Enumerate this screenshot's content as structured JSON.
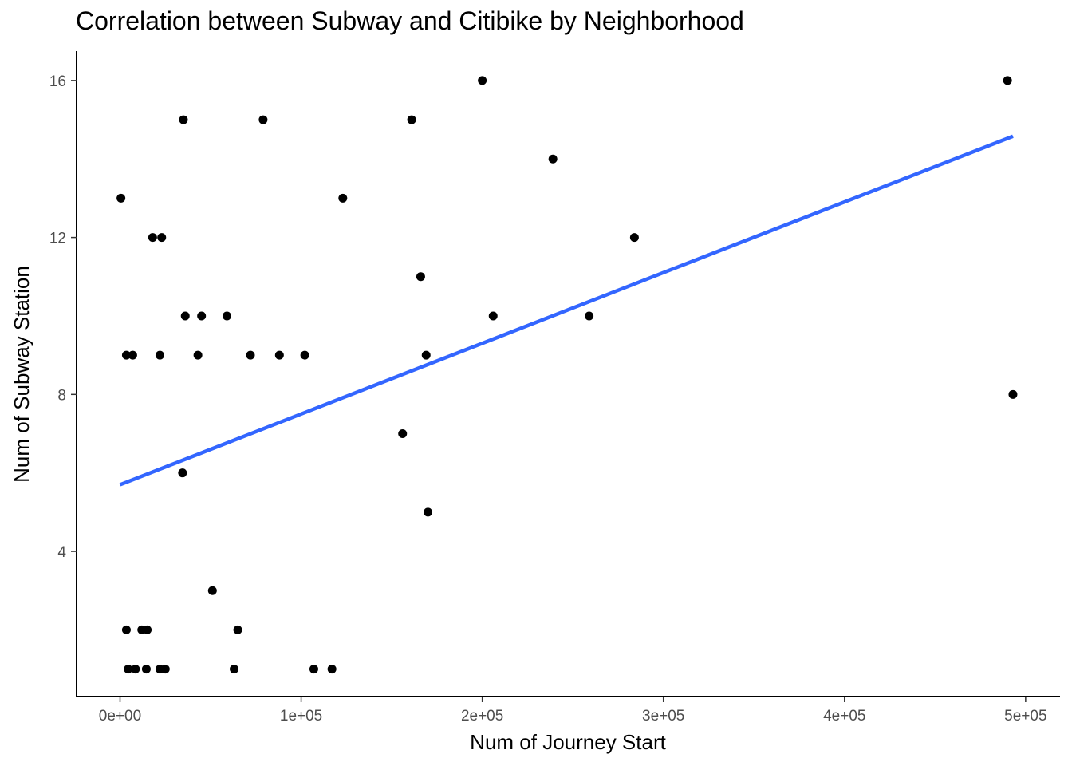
{
  "chart_data": {
    "type": "scatter",
    "title": "Correlation between Subway and Citibike by Neighborhood",
    "xlabel": "Num of Journey Start",
    "ylabel": "Num of Subway Station",
    "xlim": [
      -24000,
      519000
    ],
    "ylim": [
      0.3,
      16.75
    ],
    "x_ticks": [
      0,
      100000,
      200000,
      300000,
      400000,
      500000
    ],
    "x_tick_labels": [
      "0e+00",
      "1e+05",
      "2e+05",
      "3e+05",
      "4e+05",
      "5e+05"
    ],
    "y_ticks": [
      4,
      8,
      12,
      16
    ],
    "y_tick_labels": [
      "4",
      "8",
      "12",
      "16"
    ],
    "grid": false,
    "legend": "none",
    "points": [
      {
        "x": 500,
        "y": 13
      },
      {
        "x": 3500,
        "y": 9
      },
      {
        "x": 7000,
        "y": 9
      },
      {
        "x": 3500,
        "y": 2
      },
      {
        "x": 4500,
        "y": 1
      },
      {
        "x": 8500,
        "y": 1
      },
      {
        "x": 12000,
        "y": 2
      },
      {
        "x": 15000,
        "y": 2
      },
      {
        "x": 14500,
        "y": 1
      },
      {
        "x": 18000,
        "y": 12
      },
      {
        "x": 23000,
        "y": 12
      },
      {
        "x": 22000,
        "y": 9
      },
      {
        "x": 22000,
        "y": 1
      },
      {
        "x": 25000,
        "y": 1
      },
      {
        "x": 35000,
        "y": 15
      },
      {
        "x": 36000,
        "y": 10
      },
      {
        "x": 34500,
        "y": 6
      },
      {
        "x": 43000,
        "y": 9
      },
      {
        "x": 45000,
        "y": 10
      },
      {
        "x": 51000,
        "y": 3
      },
      {
        "x": 59000,
        "y": 10
      },
      {
        "x": 63000,
        "y": 1
      },
      {
        "x": 65000,
        "y": 2
      },
      {
        "x": 72000,
        "y": 9
      },
      {
        "x": 79000,
        "y": 15
      },
      {
        "x": 88000,
        "y": 9
      },
      {
        "x": 102000,
        "y": 9
      },
      {
        "x": 107000,
        "y": 1
      },
      {
        "x": 117000,
        "y": 1
      },
      {
        "x": 123000,
        "y": 13
      },
      {
        "x": 156000,
        "y": 7
      },
      {
        "x": 161000,
        "y": 15
      },
      {
        "x": 166000,
        "y": 11
      },
      {
        "x": 169000,
        "y": 9
      },
      {
        "x": 170000,
        "y": 5
      },
      {
        "x": 200000,
        "y": 16
      },
      {
        "x": 206000,
        "y": 10
      },
      {
        "x": 239000,
        "y": 14
      },
      {
        "x": 259000,
        "y": 10
      },
      {
        "x": 284000,
        "y": 12
      },
      {
        "x": 490000,
        "y": 16
      },
      {
        "x": 493000,
        "y": 8
      }
    ],
    "trend_line": {
      "x": [
        0,
        493000
      ],
      "y": [
        5.7,
        14.58
      ],
      "color": "#3366ff"
    },
    "point_color": "#000000"
  }
}
